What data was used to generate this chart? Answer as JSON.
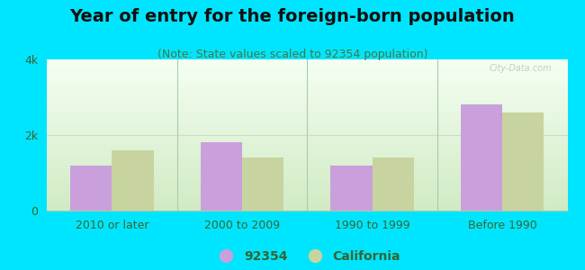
{
  "title": "Year of entry for the foreign-born population",
  "subtitle": "(Note: State values scaled to 92354 population)",
  "categories": [
    "2010 or later",
    "2000 to 2009",
    "1990 to 1999",
    "Before 1990"
  ],
  "values_92354": [
    1200,
    1800,
    1200,
    2800
  ],
  "values_california": [
    1600,
    1400,
    1400,
    2600
  ],
  "color_92354": "#c9a0dc",
  "color_california": "#c8d4a0",
  "background_outer": "#00e5ff",
  "plot_bg_top": "#f5faf5",
  "plot_bg_bottom": "#d0e8c0",
  "ylim": [
    0,
    4000
  ],
  "yticks": [
    0,
    2000,
    4000
  ],
  "ytick_labels": [
    "0",
    "2k",
    "4k"
  ],
  "legend_label_92354": "92354",
  "legend_label_california": "California",
  "title_fontsize": 14,
  "subtitle_fontsize": 9,
  "bar_width": 0.32
}
